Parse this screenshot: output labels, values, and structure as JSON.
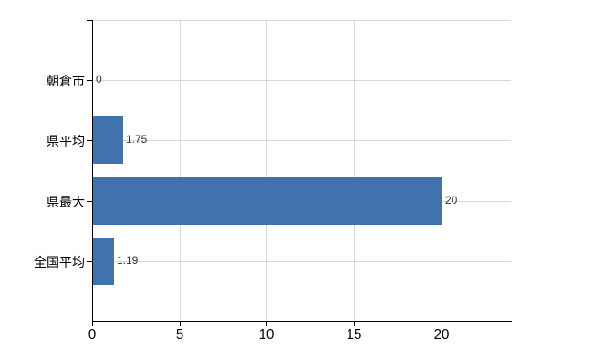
{
  "chart_data": {
    "type": "bar",
    "orientation": "horizontal",
    "title": "",
    "categories": [
      "朝倉市",
      "県平均",
      "県最大",
      "全国平均"
    ],
    "values": [
      0,
      1.75,
      20,
      1.19
    ],
    "value_labels": [
      "0",
      "1.75",
      "20",
      "1.19"
    ],
    "x_ticks": [
      0,
      5,
      10,
      15,
      20
    ],
    "xlim": [
      0,
      24
    ],
    "grid": true,
    "legend": "none",
    "colors": {
      "bar": "#4272ad",
      "grid": "#d9d9d9",
      "axis": "#000000",
      "category_label": "#000000",
      "value_label": "#333333",
      "background": "#ffffff"
    }
  }
}
